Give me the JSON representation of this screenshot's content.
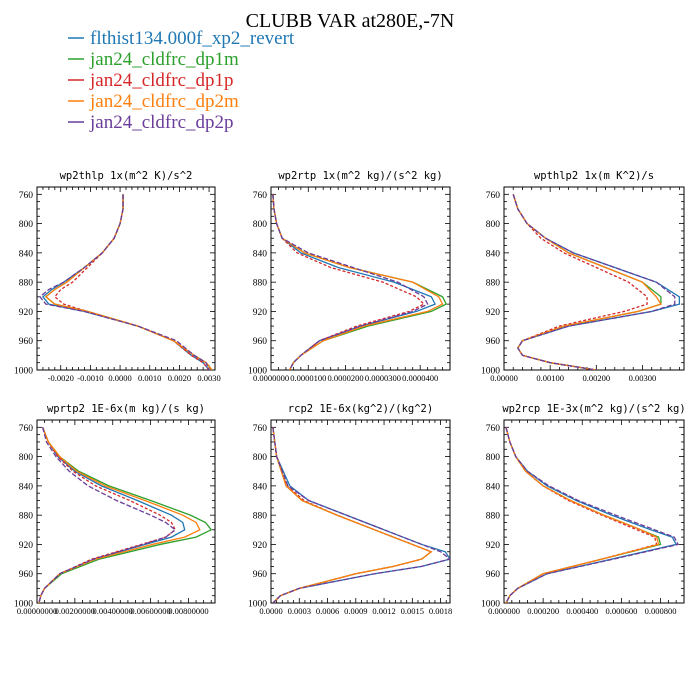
{
  "figure_title": "CLUBB VAR at280E,-7N",
  "legend": [
    {
      "name": "flthist134.000f_xp2_revert",
      "color": "#1f77b4",
      "dash": "solid"
    },
    {
      "name": "jan24_cldfrc_dp1m",
      "color": "#2ca02c",
      "dash": "solid"
    },
    {
      "name": "jan24_cldfrc_dp1p",
      "color": "#d62728",
      "dash": "solid"
    },
    {
      "name": "jan24_cldfrc_dp2m",
      "color": "#ff7f0e",
      "dash": "solid"
    },
    {
      "name": "jan24_cldfrc_dp2p",
      "color": "#6a3d9a",
      "dash": "solid"
    }
  ],
  "chart_data": [
    {
      "type": "line",
      "title": "wp2thlp  1x(m^2 K)/s^2",
      "ylim": [
        1000,
        750
      ],
      "yticks": [
        760,
        800,
        840,
        880,
        920,
        960,
        1000
      ],
      "xlim": [
        -0.0028,
        0.0032
      ],
      "xticks": [
        -0.002,
        -0.001,
        0.0,
        0.001,
        0.002,
        0.003
      ],
      "xtick_labels": [
        "-0.0020",
        "-0.0010",
        "0.0000",
        "0.0010",
        "0.0020",
        "0.0030"
      ],
      "y": [
        760,
        780,
        800,
        820,
        840,
        860,
        880,
        890,
        900,
        910,
        920,
        940,
        960,
        980,
        990,
        1000
      ],
      "series": [
        {
          "name": "flthist134.000f_xp2_revert",
          "values": [
            0.0001,
            0.0001,
            0.0,
            -0.0002,
            -0.0006,
            -0.0012,
            -0.0019,
            -0.0023,
            -0.0026,
            -0.0024,
            -0.0012,
            0.0006,
            0.0018,
            0.0024,
            0.0028,
            0.003
          ]
        },
        {
          "name": "jan24_cldfrc_dp1m",
          "values": [
            0.0001,
            0.0001,
            0.0,
            -0.0002,
            -0.0006,
            -0.0012,
            -0.0018,
            -0.0022,
            -0.0025,
            -0.0022,
            -0.0011,
            0.0006,
            0.0018,
            0.0025,
            0.0029,
            0.0031
          ]
        },
        {
          "name": "jan24_cldfrc_dp1p",
          "values": [
            0.0001,
            0.0001,
            0.0,
            -0.0002,
            -0.0006,
            -0.0011,
            -0.0016,
            -0.002,
            -0.0022,
            -0.0019,
            -0.0011,
            0.0006,
            0.0018,
            0.0024,
            0.0028,
            0.003
          ]
        },
        {
          "name": "jan24_cldfrc_dp2m",
          "values": [
            0.0001,
            0.0001,
            0.0,
            -0.0002,
            -0.0006,
            -0.0012,
            -0.0018,
            -0.0022,
            -0.0025,
            -0.0022,
            -0.0011,
            0.0006,
            0.0018,
            0.0025,
            0.0029,
            0.0031
          ]
        },
        {
          "name": "jan24_cldfrc_dp2p",
          "values": [
            0.0001,
            0.0001,
            0.0,
            -0.0002,
            -0.0006,
            -0.0012,
            -0.0019,
            -0.0024,
            -0.0027,
            -0.0025,
            -0.0012,
            0.0006,
            0.0019,
            0.0025,
            0.0029,
            0.003
          ]
        }
      ]
    },
    {
      "type": "line",
      "title": "wp2rtp  1x(m^2 kg)/(s^2 kg)",
      "ylim": [
        1000,
        750
      ],
      "yticks": [
        760,
        800,
        840,
        880,
        920,
        960,
        1000
      ],
      "xlim": [
        0.0,
        4.8e-05
      ],
      "xticks": [
        0.0,
        1e-05,
        2e-05,
        3e-05,
        4e-05
      ],
      "xtick_labels": [
        "0.0000000",
        "0.0000100",
        "0.0000200",
        "0.0000300",
        "0.0000400"
      ],
      "y": [
        760,
        780,
        800,
        820,
        840,
        860,
        880,
        900,
        910,
        920,
        940,
        960,
        980,
        990,
        1000
      ],
      "series": [
        {
          "name": "flthist134.000f_xp2_revert",
          "values": [
            5e-07,
            8e-07,
            1.5e-06,
            3e-06,
            8e-06,
            1.8e-05,
            3.3e-05,
            4.3e-05,
            4.4e-05,
            3.9e-05,
            2.4e-05,
            1.3e-05,
            8e-06,
            6e-06,
            5e-06
          ]
        },
        {
          "name": "jan24_cldfrc_dp1m",
          "values": [
            5e-07,
            8e-07,
            1.5e-06,
            3e-06,
            9e-06,
            2.1e-05,
            3.8e-05,
            4.6e-05,
            4.7e-05,
            4.3e-05,
            2.6e-05,
            1.4e-05,
            8e-06,
            6e-06,
            5e-06
          ]
        },
        {
          "name": "jan24_cldfrc_dp1p",
          "values": [
            5e-07,
            8e-07,
            1.5e-06,
            3e-06,
            7e-06,
            1.6e-05,
            3e-05,
            3.9e-05,
            4.1e-05,
            3.7e-05,
            2.3e-05,
            1.3e-05,
            8e-06,
            6e-06,
            5e-06
          ]
        },
        {
          "name": "jan24_cldfrc_dp2m",
          "values": [
            5e-07,
            8e-07,
            1.5e-06,
            3e-06,
            9e-06,
            2.1e-05,
            3.8e-05,
            4.5e-05,
            4.6e-05,
            4.2e-05,
            2.5e-05,
            1.4e-05,
            8e-06,
            6e-06,
            5e-06
          ]
        },
        {
          "name": "jan24_cldfrc_dp2p",
          "values": [
            5e-07,
            8e-07,
            1.5e-06,
            3e-06,
            1e-05,
            2.2e-05,
            3.4e-05,
            4.1e-05,
            4.2e-05,
            3.8e-05,
            2.4e-05,
            1.3e-05,
            8e-06,
            6e-06,
            5e-06
          ]
        }
      ]
    },
    {
      "type": "line",
      "title": "wpthlp2  1x(m K^2)/s",
      "ylim": [
        1000,
        750
      ],
      "yticks": [
        760,
        800,
        840,
        880,
        920,
        960,
        1000
      ],
      "xlim": [
        0.0,
        0.0039
      ],
      "xticks": [
        0.0,
        0.001,
        0.002,
        0.003
      ],
      "xtick_labels": [
        "0.00000",
        "0.00100",
        "0.00200",
        "0.00300"
      ],
      "y": [
        760,
        780,
        800,
        820,
        840,
        860,
        880,
        900,
        910,
        920,
        940,
        960,
        970,
        980,
        990,
        1000
      ],
      "series": [
        {
          "name": "flthist134.000f_xp2_revert",
          "values": [
            0.0002,
            0.0003,
            0.0005,
            0.0009,
            0.0015,
            0.0024,
            0.0033,
            0.0038,
            0.0038,
            0.0032,
            0.0014,
            0.0004,
            0.0003,
            0.0004,
            0.001,
            0.002
          ]
        },
        {
          "name": "jan24_cldfrc_dp1m",
          "values": [
            0.0002,
            0.0003,
            0.0005,
            0.0009,
            0.0014,
            0.0022,
            0.003,
            0.0034,
            0.0034,
            0.0029,
            0.0013,
            0.0004,
            0.0003,
            0.0004,
            0.001,
            0.002
          ]
        },
        {
          "name": "jan24_cldfrc_dp1p",
          "values": [
            0.0002,
            0.0003,
            0.0005,
            0.0008,
            0.0013,
            0.002,
            0.0027,
            0.0031,
            0.0031,
            0.0026,
            0.0012,
            0.0004,
            0.0003,
            0.0004,
            0.001,
            0.002
          ]
        },
        {
          "name": "jan24_cldfrc_dp2m",
          "values": [
            0.0002,
            0.0003,
            0.0005,
            0.0009,
            0.0014,
            0.0022,
            0.003,
            0.0033,
            0.0034,
            0.0029,
            0.0013,
            0.0004,
            0.0003,
            0.0004,
            0.001,
            0.002
          ]
        },
        {
          "name": "jan24_cldfrc_dp2p",
          "values": [
            0.0002,
            0.0003,
            0.0005,
            0.0009,
            0.0015,
            0.0024,
            0.0033,
            0.0037,
            0.0037,
            0.0032,
            0.0014,
            0.0004,
            0.0003,
            0.0004,
            0.001,
            0.002
          ]
        }
      ]
    },
    {
      "type": "line",
      "title": "wprtp2  1E-6x(m kg)/(s kg)",
      "ylim": [
        1000,
        750
      ],
      "yticks": [
        760,
        800,
        840,
        880,
        920,
        960,
        1000
      ],
      "xlim": [
        0.0,
        0.0094
      ],
      "xticks": [
        0.0,
        0.002,
        0.004,
        0.006,
        0.008
      ],
      "xtick_labels": [
        "0.00000000",
        "0.00200000",
        "0.00400000",
        "0.00600000",
        "0.00800000"
      ],
      "y": [
        760,
        780,
        800,
        820,
        840,
        860,
        880,
        890,
        900,
        910,
        920,
        940,
        960,
        980,
        990,
        1000
      ],
      "series": [
        {
          "name": "flthist134.000f_xp2_revert",
          "values": [
            0.0003,
            0.0006,
            0.0011,
            0.002,
            0.0034,
            0.0053,
            0.0071,
            0.0077,
            0.0078,
            0.0071,
            0.0057,
            0.003,
            0.0012,
            0.0004,
            0.0002,
            0.0001
          ]
        },
        {
          "name": "jan24_cldfrc_dp1m",
          "values": [
            0.0003,
            0.0006,
            0.0012,
            0.0022,
            0.0038,
            0.006,
            0.0081,
            0.0089,
            0.0092,
            0.0084,
            0.0065,
            0.0033,
            0.0013,
            0.0004,
            0.0002,
            0.0001
          ]
        },
        {
          "name": "jan24_cldfrc_dp1p",
          "values": [
            0.0003,
            0.0006,
            0.0011,
            0.0019,
            0.0031,
            0.0049,
            0.0065,
            0.0071,
            0.0073,
            0.0068,
            0.0055,
            0.0029,
            0.0012,
            0.0004,
            0.0002,
            0.0001
          ]
        },
        {
          "name": "jan24_cldfrc_dp2m",
          "values": [
            0.0003,
            0.0006,
            0.0012,
            0.0021,
            0.0036,
            0.0057,
            0.0077,
            0.0084,
            0.0086,
            0.0078,
            0.0061,
            0.0031,
            0.0012,
            0.0004,
            0.0002,
            0.0001
          ]
        },
        {
          "name": "jan24_cldfrc_dp2p",
          "values": [
            0.0003,
            0.0005,
            0.001,
            0.0017,
            0.0027,
            0.0042,
            0.006,
            0.0068,
            0.0073,
            0.0068,
            0.0056,
            0.003,
            0.0012,
            0.0004,
            0.0002,
            0.0001
          ]
        }
      ]
    },
    {
      "type": "line",
      "title": "rcp2  1E-6x(kg^2)/(kg^2)",
      "ylim": [
        1000,
        750
      ],
      "yticks": [
        760,
        800,
        840,
        880,
        920,
        960,
        1000
      ],
      "xlim": [
        0.0,
        0.0019
      ],
      "xticks": [
        0.0,
        0.0003,
        0.0006,
        0.0009,
        0.0012,
        0.0015,
        0.0018
      ],
      "xtick_labels": [
        "0.0000",
        "0.0003",
        "0.0006",
        "0.0009",
        "0.0012",
        "0.0015",
        "0.0018"
      ],
      "y": [
        760,
        800,
        840,
        860,
        880,
        900,
        920,
        930,
        940,
        950,
        960,
        980,
        990,
        1000
      ],
      "series": [
        {
          "name": "flthist134.000f_xp2_revert",
          "values": [
            2e-05,
            6e-05,
            0.0002,
            0.0004,
            0.0008,
            0.0012,
            0.0016,
            0.00185,
            0.0019,
            0.0016,
            0.0011,
            0.0003,
            0.0001,
            2e-05
          ]
        },
        {
          "name": "jan24_cldfrc_dp1m",
          "values": [
            2e-05,
            6e-05,
            0.00016,
            0.00033,
            0.0007,
            0.0011,
            0.0015,
            0.0017,
            0.0016,
            0.0013,
            0.0009,
            0.0003,
            0.0001,
            2e-05
          ]
        },
        {
          "name": "jan24_cldfrc_dp1p",
          "values": [
            2e-05,
            6e-05,
            0.00017,
            0.00035,
            0.0007,
            0.0011,
            0.0015,
            0.0017,
            0.0016,
            0.0013,
            0.0009,
            0.0003,
            0.0001,
            2e-05
          ]
        },
        {
          "name": "jan24_cldfrc_dp2m",
          "values": [
            2e-05,
            6e-05,
            0.00016,
            0.00033,
            0.0007,
            0.0011,
            0.0015,
            0.0017,
            0.0016,
            0.0013,
            0.0009,
            0.0003,
            0.0001,
            2e-05
          ]
        },
        {
          "name": "jan24_cldfrc_dp2p",
          "values": [
            2e-05,
            6e-05,
            0.00018,
            0.0004,
            0.0008,
            0.0012,
            0.0016,
            0.0018,
            0.0019,
            0.0016,
            0.0011,
            0.0003,
            0.0001,
            2e-05
          ]
        }
      ]
    },
    {
      "type": "line",
      "title": "wp2rcp  1E-3x(m^2 kg)/(s^2 kg)",
      "ylim": [
        1000,
        750
      ],
      "yticks": [
        760,
        800,
        840,
        880,
        920,
        960,
        1000
      ],
      "xlim": [
        0.0,
        0.00092
      ],
      "xticks": [
        0.0,
        0.0002,
        0.0004,
        0.0006,
        0.0008
      ],
      "xtick_labels": [
        "0.000000",
        "0.000200",
        "0.000400",
        "0.000600",
        "0.000800"
      ],
      "y": [
        760,
        780,
        800,
        820,
        840,
        860,
        880,
        900,
        910,
        920,
        940,
        960,
        980,
        990,
        1000
      ],
      "series": [
        {
          "name": "flthist134.000f_xp2_revert",
          "values": [
            1e-05,
            3e-05,
            6e-05,
            0.00012,
            0.00022,
            0.00037,
            0.00055,
            0.00075,
            0.00086,
            0.00088,
            0.00055,
            0.00022,
            7e-05,
            3e-05,
            1e-05
          ]
        },
        {
          "name": "jan24_cldfrc_dp1m",
          "values": [
            1e-05,
            3e-05,
            6e-05,
            0.00011,
            0.0002,
            0.00034,
            0.00051,
            0.0007,
            0.00079,
            0.0008,
            0.0005,
            0.0002,
            7e-05,
            3e-05,
            1e-05
          ]
        },
        {
          "name": "jan24_cldfrc_dp1p",
          "values": [
            1e-05,
            3e-05,
            6e-05,
            0.00011,
            0.0002,
            0.00033,
            0.0005,
            0.00068,
            0.00077,
            0.00078,
            0.0005,
            0.0002,
            7e-05,
            3e-05,
            1e-05
          ]
        },
        {
          "name": "jan24_cldfrc_dp2m",
          "values": [
            1e-05,
            3e-05,
            6e-05,
            0.00011,
            0.0002,
            0.00034,
            0.00051,
            0.0007,
            0.00078,
            0.00079,
            0.0005,
            0.0002,
            7e-05,
            3e-05,
            1e-05
          ]
        },
        {
          "name": "jan24_cldfrc_dp2p",
          "values": [
            1e-05,
            3e-05,
            6e-05,
            0.00012,
            0.00023,
            0.00038,
            0.00057,
            0.00077,
            0.00087,
            0.00089,
            0.00056,
            0.00022,
            7e-05,
            3e-05,
            1e-05
          ]
        }
      ]
    }
  ]
}
